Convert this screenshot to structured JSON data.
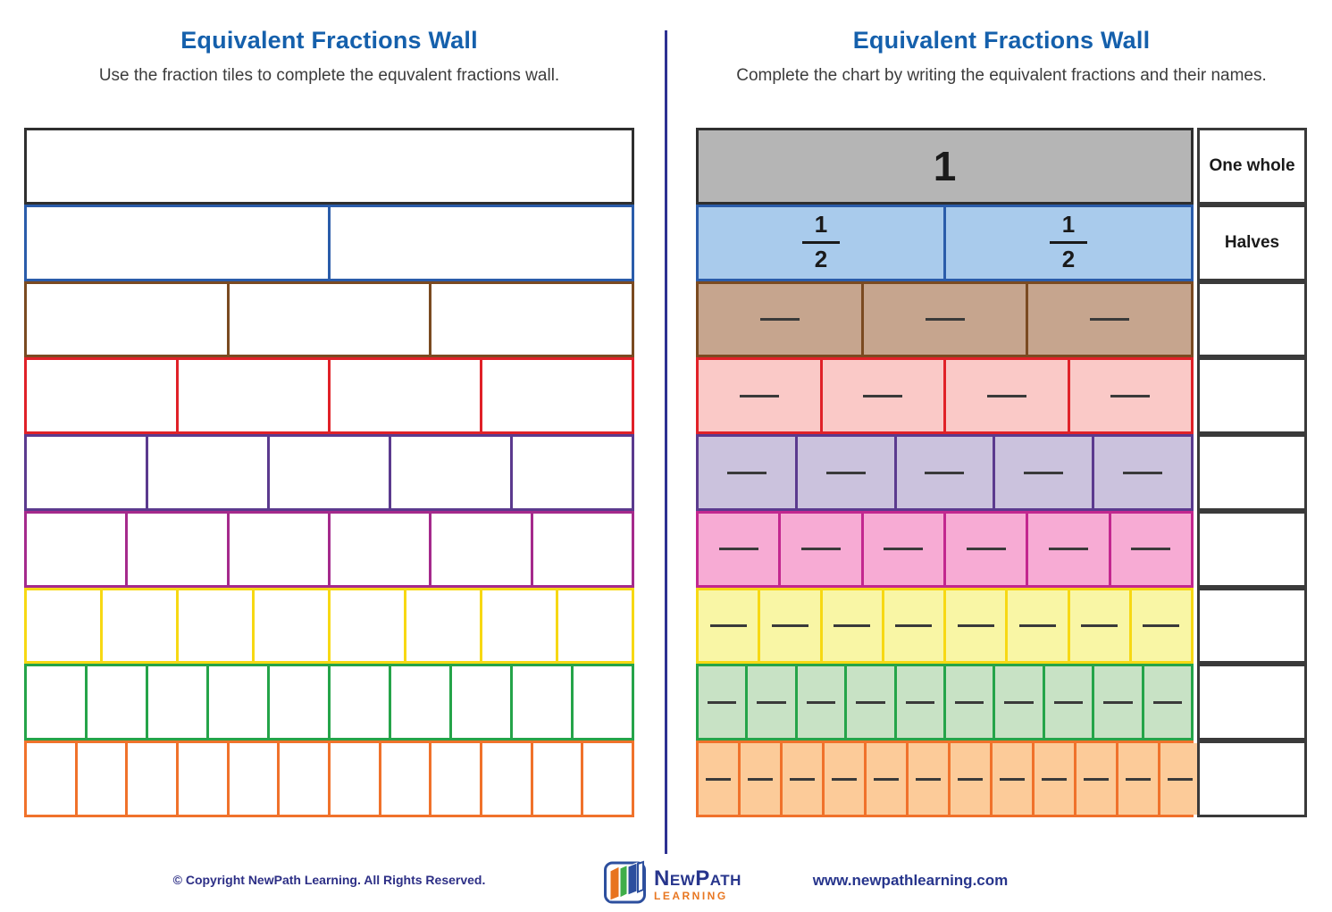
{
  "colors": {
    "title_blue": "#1560ac",
    "divider_navy": "#2e3192",
    "label_border": "#3a3a3a",
    "blank_dash": "#3a3a3a"
  },
  "left_panel": {
    "title": "Equivalent Fractions Wall",
    "subtitle": "Use the fraction tiles to complete the equvalent fractions wall.",
    "rows": [
      {
        "name": "one-whole",
        "cells": 1,
        "border": "#2f2f2f"
      },
      {
        "name": "halves",
        "cells": 2,
        "border": "#2a5caa"
      },
      {
        "name": "thirds",
        "cells": 3,
        "border": "#7a4a21"
      },
      {
        "name": "fourths",
        "cells": 4,
        "border": "#e02128"
      },
      {
        "name": "fifths",
        "cells": 5,
        "border": "#5b3a8e"
      },
      {
        "name": "sixths",
        "cells": 6,
        "border": "#a52a8c"
      },
      {
        "name": "eighths",
        "cells": 8,
        "border": "#f7d813"
      },
      {
        "name": "tenths",
        "cells": 10,
        "border": "#25a449"
      },
      {
        "name": "twelfths",
        "cells": 12,
        "border": "#f0722b"
      }
    ]
  },
  "right_panel": {
    "title": "Equivalent Fractions Wall",
    "subtitle": "Complete the chart by writing the equivalent fractions and their names.",
    "rows": [
      {
        "name": "one-whole",
        "cells": 1,
        "fill": "#b5b5b5",
        "border": "#2f2f2f",
        "content": {
          "type": "number",
          "value": "1"
        },
        "label": "One whole"
      },
      {
        "name": "halves",
        "cells": 2,
        "fill": "#a9cbec",
        "border": "#2a5caa",
        "content": {
          "type": "fraction",
          "numerator": "1",
          "denominator": "2"
        },
        "label": "Halves"
      },
      {
        "name": "thirds",
        "cells": 3,
        "fill": "#c6a58e",
        "border": "#7a4a21",
        "content": {
          "type": "blank"
        },
        "label": ""
      },
      {
        "name": "fourths",
        "cells": 4,
        "fill": "#fac9c7",
        "border": "#e02128",
        "content": {
          "type": "blank"
        },
        "label": ""
      },
      {
        "name": "fifths",
        "cells": 5,
        "fill": "#cbc2dd",
        "border": "#5b3a8e",
        "content": {
          "type": "blank"
        },
        "label": ""
      },
      {
        "name": "sixths",
        "cells": 6,
        "fill": "#f7abd4",
        "border": "#c3278f",
        "content": {
          "type": "blank"
        },
        "label": ""
      },
      {
        "name": "eighths",
        "cells": 8,
        "fill": "#f9f6a5",
        "border": "#f7d813",
        "content": {
          "type": "blank"
        },
        "label": ""
      },
      {
        "name": "tenths",
        "cells": 10,
        "fill": "#c8e2c5",
        "border": "#25a449",
        "content": {
          "type": "blank"
        },
        "label": ""
      },
      {
        "name": "twelfths",
        "cells": 12,
        "fill": "#fccb99",
        "border": "#f0722b",
        "content": {
          "type": "blank"
        },
        "label": ""
      }
    ]
  },
  "footer": {
    "copyright": "© Copyright NewPath Learning. All Rights Reserved.",
    "logo_name": "NewPath",
    "logo_sub": "LEARNING",
    "url": "www.newpathlearning.com"
  }
}
